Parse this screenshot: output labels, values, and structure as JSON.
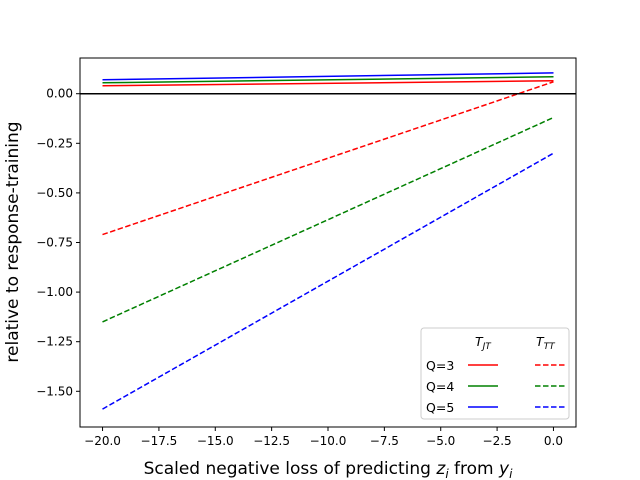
{
  "chart_data": {
    "type": "line",
    "title": "",
    "xlabel": {
      "before": "Scaled negative loss of predicting ",
      "z": "z",
      "z_sub": "i",
      "middle": " from ",
      "y": "y",
      "y_sub": "i"
    },
    "ylabel": "relative to response-training",
    "xlim": [
      -21,
      1
    ],
    "ylim": [
      -1.68,
      0.18
    ],
    "x_ticks": [
      -20.0,
      -17.5,
      -15.0,
      -12.5,
      -10.0,
      -7.5,
      -5.0,
      -2.5,
      0.0
    ],
    "x_tick_labels": [
      "−20.0",
      "−17.5",
      "−15.0",
      "−12.5",
      "−10.0",
      "−7.5",
      "−5.0",
      "−2.5",
      "0.0"
    ],
    "y_ticks": [
      0.0,
      -0.25,
      -0.5,
      -0.75,
      -1.0,
      -1.25,
      -1.5
    ],
    "y_tick_labels": [
      "0.00",
      "−0.25",
      "−0.50",
      "−0.75",
      "−1.00",
      "−1.25",
      "−1.50"
    ],
    "reference_line": {
      "y": 0.0,
      "color": "#000000"
    },
    "grid": false,
    "legend": {
      "placement": "lower-right",
      "col_headers": [
        {
          "main": "T",
          "sub": "JT"
        },
        {
          "main": "T",
          "sub": "TT"
        }
      ],
      "rows": [
        "Q=3",
        "Q=4",
        "Q=5"
      ]
    },
    "series": [
      {
        "name": "Q=3",
        "method": "T_JT",
        "style": "solid",
        "color": "#ff0000",
        "x": [
          -20,
          0
        ],
        "y": [
          0.04,
          0.065
        ]
      },
      {
        "name": "Q=4",
        "method": "T_JT",
        "style": "solid",
        "color": "#008000",
        "x": [
          -20,
          0
        ],
        "y": [
          0.055,
          0.085
        ]
      },
      {
        "name": "Q=5",
        "method": "T_JT",
        "style": "solid",
        "color": "#0000ff",
        "x": [
          -20,
          0
        ],
        "y": [
          0.07,
          0.105
        ]
      },
      {
        "name": "Q=3",
        "method": "T_TT",
        "style": "dashed",
        "color": "#ff0000",
        "x": [
          -20,
          0
        ],
        "y": [
          -0.71,
          0.06
        ]
      },
      {
        "name": "Q=4",
        "method": "T_TT",
        "style": "dashed",
        "color": "#008000",
        "x": [
          -20,
          0
        ],
        "y": [
          -1.15,
          -0.12
        ]
      },
      {
        "name": "Q=5",
        "method": "T_TT",
        "style": "dashed",
        "color": "#0000ff",
        "x": [
          -20,
          0
        ],
        "y": [
          -1.59,
          -0.3
        ]
      }
    ]
  }
}
